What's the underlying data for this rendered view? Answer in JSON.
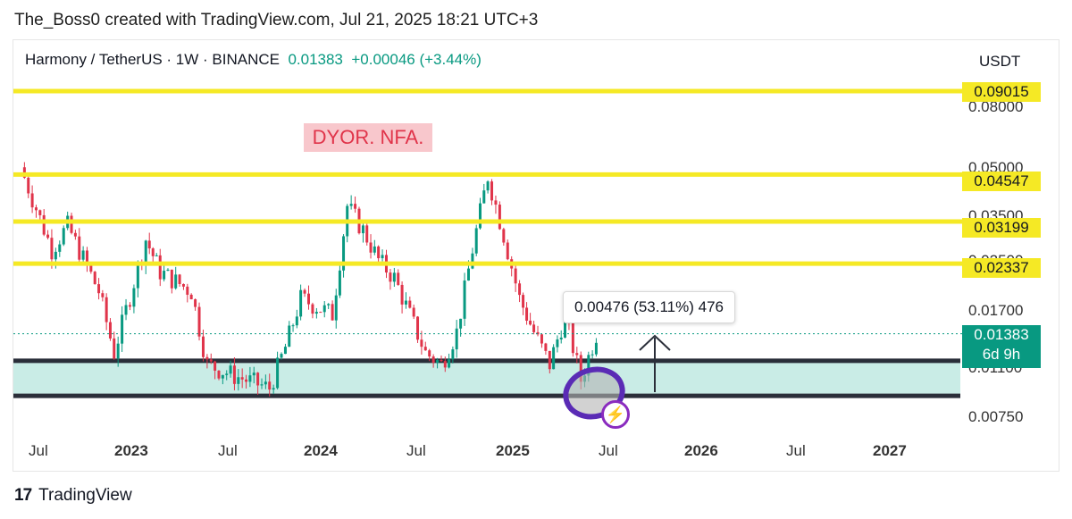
{
  "credit": "The_Boss0 created with TradingView.com, Jul 21, 2025 18:21 UTC+3",
  "symbol": {
    "name": "Harmony / TetherUS · 1W · BINANCE",
    "price": "0.01383",
    "change": "+0.00046 (+3.44%)"
  },
  "currency": "USDT",
  "note": "DYOR. NFA.",
  "measure_tooltip": "0.00476 (53.11%) 476",
  "current_price": {
    "price": "0.01383",
    "countdown": "6d 9h",
    "color": "#089981"
  },
  "resistance_tags": [
    "0.09015",
    "0.04547",
    "0.03199",
    "0.02337"
  ],
  "y_axis_labels": [
    "0.08000",
    "0.05000",
    "0.03500",
    "0.02500",
    "0.01700",
    "0.01100",
    "0.00750"
  ],
  "x_axis_labels": [
    {
      "text": "Jul",
      "bold": false
    },
    {
      "text": "2023",
      "bold": true
    },
    {
      "text": "Jul",
      "bold": false
    },
    {
      "text": "2024",
      "bold": true
    },
    {
      "text": "Jul",
      "bold": false
    },
    {
      "text": "2025",
      "bold": true
    },
    {
      "text": "Jul",
      "bold": false
    },
    {
      "text": "2026",
      "bold": true
    },
    {
      "text": "Jul",
      "bold": false
    },
    {
      "text": "2027",
      "bold": true
    }
  ],
  "footer": {
    "brand": "TradingView",
    "mark": "17"
  },
  "colors": {
    "up": "#089981",
    "down": "#e0344a",
    "level_line": "#f5e925",
    "support_zone": "#c9ece6"
  },
  "chart_data": {
    "type": "candlestick",
    "title": "Harmony / TetherUS · 1W · BINANCE",
    "ylabel": "USDT",
    "scale": "log",
    "ylim": [
      0.0068,
      0.105
    ],
    "horizontal_levels": [
      0.09015,
      0.04547,
      0.03199,
      0.02337
    ],
    "support_zone": [
      0.0087,
      0.0113
    ],
    "last_price": 0.01383,
    "measure": {
      "from": 0.00907,
      "to": 0.01383,
      "change": 0.00476,
      "percent": 53.11,
      "bars": 476
    },
    "close_series": [
      {
        "x": "2022-06",
        "y": 0.048
      },
      {
        "x": "2022-08",
        "y": 0.026
      },
      {
        "x": "2022-09",
        "y": 0.031
      },
      {
        "x": "2022-11",
        "y": 0.019
      },
      {
        "x": "2022-12",
        "y": 0.012
      },
      {
        "x": "2023-02",
        "y": 0.028
      },
      {
        "x": "2023-03",
        "y": 0.022
      },
      {
        "x": "2023-05",
        "y": 0.019
      },
      {
        "x": "2023-06",
        "y": 0.011
      },
      {
        "x": "2023-08",
        "y": 0.01
      },
      {
        "x": "2023-10",
        "y": 0.0092
      },
      {
        "x": "2023-11",
        "y": 0.0125
      },
      {
        "x": "2023-12",
        "y": 0.018
      },
      {
        "x": "2024-02",
        "y": 0.016
      },
      {
        "x": "2024-03",
        "y": 0.036
      },
      {
        "x": "2024-04",
        "y": 0.03
      },
      {
        "x": "2024-05",
        "y": 0.024
      },
      {
        "x": "2024-06",
        "y": 0.021
      },
      {
        "x": "2024-08",
        "y": 0.012
      },
      {
        "x": "2024-09",
        "y": 0.011
      },
      {
        "x": "2024-10",
        "y": 0.014
      },
      {
        "x": "2024-11",
        "y": 0.026
      },
      {
        "x": "2024-12",
        "y": 0.045
      },
      {
        "x": "2025-01",
        "y": 0.029
      },
      {
        "x": "2025-02",
        "y": 0.018
      },
      {
        "x": "2025-03",
        "y": 0.014
      },
      {
        "x": "2025-04",
        "y": 0.011
      },
      {
        "x": "2025-05",
        "y": 0.016
      },
      {
        "x": "2025-06",
        "y": 0.0098
      },
      {
        "x": "2025-07",
        "y": 0.01383
      }
    ]
  }
}
